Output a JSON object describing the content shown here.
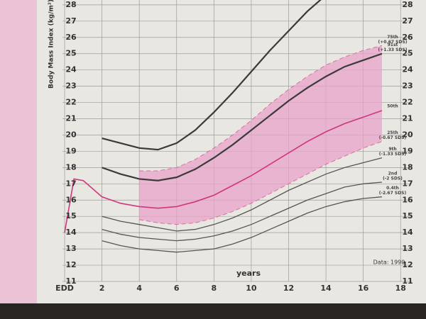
{
  "chart_data": {
    "type": "line",
    "y_label": "Body Mass Index (kg/m²)",
    "x_label": "years",
    "note": "Data: 1990",
    "xlim": [
      -0.8,
      18.6
    ],
    "ylim": [
      11,
      28.3
    ],
    "xticks": [
      {
        "value": 0,
        "label": "EDD"
      },
      2,
      4,
      6,
      8,
      10,
      12,
      14,
      16,
      18
    ],
    "yticks": [
      11,
      12,
      13,
      14,
      15,
      16,
      17,
      18,
      19,
      20,
      21,
      22,
      23,
      24,
      25,
      26,
      27,
      28
    ],
    "grid": true,
    "x": [
      0,
      0.5,
      1,
      2,
      3,
      4,
      5,
      6,
      7,
      8,
      9,
      10,
      11,
      12,
      13,
      14,
      15,
      16,
      17
    ],
    "series": [
      {
        "color": "#3a3a3a",
        "width": 2.2,
        "dash": false,
        "values": [
          null,
          null,
          null,
          19.8,
          19.5,
          19.2,
          19.1,
          19.5,
          20.3,
          21.4,
          22.6,
          23.9,
          25.2,
          26.4,
          27.6,
          28.6,
          null,
          null,
          null
        ]
      },
      {
        "name": "91st",
        "sds": "(+1.33 SDS)",
        "color": "#3a3a3a",
        "width": 2.2,
        "dash": false,
        "values": [
          null,
          null,
          null,
          18.0,
          17.6,
          17.3,
          17.2,
          17.4,
          17.9,
          18.6,
          19.4,
          20.3,
          21.2,
          22.1,
          22.9,
          23.6,
          24.2,
          24.6,
          25.0
        ]
      },
      {
        "name": "50th",
        "color": "#d0357f",
        "width": 1.6,
        "dash": false,
        "values": [
          14.0,
          17.3,
          17.2,
          16.2,
          15.8,
          15.6,
          15.5,
          15.6,
          15.9,
          16.3,
          16.9,
          17.5,
          18.2,
          18.9,
          19.6,
          20.2,
          20.7,
          21.1,
          21.5
        ]
      },
      {
        "name": "75th",
        "sds": "(+0.67 SDS)",
        "color": "#d9709f",
        "width": 1,
        "dash": true,
        "fill": "#e7a3c8",
        "values": [
          null,
          null,
          null,
          null,
          null,
          17.8,
          17.8,
          18.0,
          18.5,
          19.2,
          20.0,
          20.9,
          21.9,
          22.8,
          23.6,
          24.3,
          24.8,
          25.2,
          25.5
        ]
      },
      {
        "name": "25th",
        "sds": "(-0.67 SDS)",
        "color": "#d9709f",
        "width": 1,
        "dash": true,
        "values": [
          null,
          null,
          null,
          null,
          null,
          14.8,
          14.6,
          14.5,
          14.6,
          14.9,
          15.3,
          15.8,
          16.4,
          17.0,
          17.6,
          18.2,
          18.7,
          19.2,
          19.6
        ]
      },
      {
        "name": "9th",
        "sds": "(-1.33 SDS)",
        "color": "#555555",
        "width": 1.3,
        "dash": false,
        "values": [
          null,
          null,
          null,
          15.0,
          14.7,
          14.5,
          14.3,
          14.1,
          14.2,
          14.5,
          14.9,
          15.4,
          16.0,
          16.6,
          17.1,
          17.6,
          18.0,
          18.3,
          18.6
        ]
      },
      {
        "name": "2nd",
        "sds": "(-2 SDS)",
        "color": "#555555",
        "width": 1.3,
        "dash": false,
        "values": [
          null,
          null,
          null,
          14.2,
          13.9,
          13.7,
          13.6,
          13.5,
          13.6,
          13.8,
          14.1,
          14.5,
          15.0,
          15.5,
          16.0,
          16.4,
          16.8,
          17.0,
          17.1
        ]
      },
      {
        "name": "0.4th",
        "sds": "(-2.67 SDS)",
        "color": "#555555",
        "width": 1.3,
        "dash": false,
        "values": [
          null,
          null,
          null,
          13.5,
          13.2,
          13.0,
          12.9,
          12.8,
          12.9,
          13.0,
          13.3,
          13.7,
          14.2,
          14.7,
          15.2,
          15.6,
          15.9,
          16.1,
          16.2
        ]
      }
    ]
  }
}
